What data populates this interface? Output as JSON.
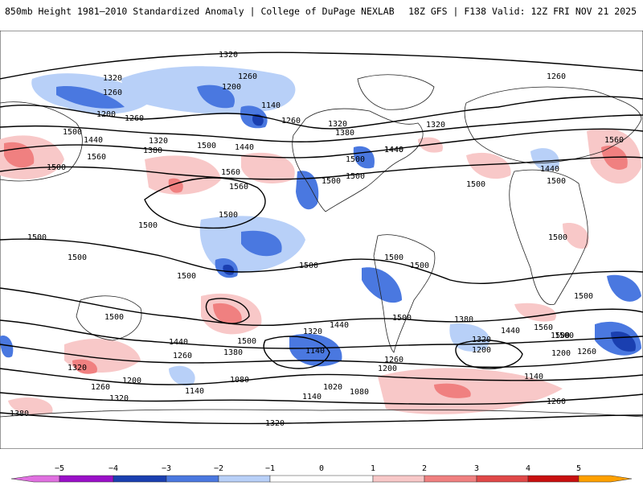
{
  "header": {
    "title": "850mb Height 1981–2010 Standardized Anomaly | College of DuPage NEXLAB",
    "run_info": "18Z GFS | F138 Valid: 12Z FRI NOV 21 2025"
  },
  "map": {
    "contour_labels": [
      "1320",
      "1320",
      "1260",
      "1200",
      "1260",
      "1200",
      "1140",
      "1260",
      "1260",
      "1320",
      "1380",
      "1440",
      "1320",
      "1260",
      "1500",
      "1440",
      "1320",
      "1380",
      "1500",
      "1440",
      "1560",
      "1500",
      "1560",
      "1560",
      "1500",
      "1500",
      "1500",
      "1440",
      "1560",
      "1440",
      "1500",
      "1500",
      "1500",
      "1500",
      "1500",
      "1500",
      "1500",
      "1500",
      "1500",
      "1500",
      "1500",
      "1500",
      "1500",
      "1500",
      "1440",
      "1380",
      "1500",
      "1500",
      "1320",
      "1440",
      "1320",
      "1440",
      "1380",
      "1320",
      "1200",
      "1260",
      "1140",
      "1260",
      "1200",
      "1260",
      "1320",
      "1200",
      "1140",
      "1080",
      "1020",
      "1080",
      "1140",
      "1260",
      "1200",
      "1140",
      "1380",
      "1320",
      "1260",
      "1560",
      "1500"
    ],
    "colors": {
      "neg5": "#e070e0",
      "neg4": "#9a10c8",
      "neg3": "#1a3fb0",
      "neg2": "#4a78e0",
      "neg1": "#b8d0f8",
      "pos1": "#f8c8c8",
      "pos2": "#f08080",
      "pos3": "#e04848",
      "pos4": "#c81010",
      "pos5": "#ffa000"
    }
  },
  "colorbar": {
    "ticks": [
      "−5",
      "−4",
      "−3",
      "−2",
      "−1",
      "0",
      "1",
      "2",
      "3",
      "4",
      "5"
    ]
  }
}
